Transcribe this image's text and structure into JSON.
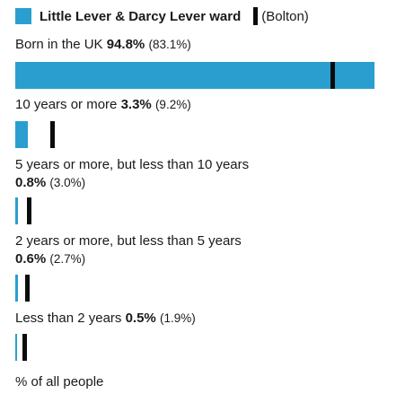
{
  "colors": {
    "area": "#2a9fcf",
    "reference": "#0b0c0c"
  },
  "legend": {
    "area_name": "Little Lever & Darcy Lever ward",
    "reference_name": "(Bolton)"
  },
  "chart_data": {
    "type": "bar",
    "orientation": "horizontal",
    "unit": "% of all people",
    "xlim": [
      0,
      100
    ],
    "series": [
      {
        "name": "Little Lever & Darcy Lever ward",
        "values": [
          94.8,
          3.3,
          0.8,
          0.6,
          0.5
        ]
      },
      {
        "name": "Bolton",
        "values": [
          83.1,
          9.2,
          3.0,
          2.7,
          1.9
        ]
      }
    ],
    "categories": [
      "Born in the UK",
      "10 years or more",
      "5 years or more, but less than 10 years",
      "2 years or more, but less than 5 years",
      "Less than 2 years"
    ],
    "rows": [
      {
        "label": "Born in the UK",
        "value_text": "94.8%",
        "compare_text": "(83.1%)"
      },
      {
        "label": "10 years or more",
        "value_text": "3.3%",
        "compare_text": "(9.2%)"
      },
      {
        "label": "5 years or more, but less than 10 years",
        "value_text": "0.8%",
        "compare_text": "(3.0%)"
      },
      {
        "label": "2 years or more, but less than 5 years",
        "value_text": "0.6%",
        "compare_text": "(2.7%)"
      },
      {
        "label": "Less than 2 years",
        "value_text": "0.5%",
        "compare_text": "(1.9%)"
      }
    ],
    "footer": "% of all people"
  }
}
